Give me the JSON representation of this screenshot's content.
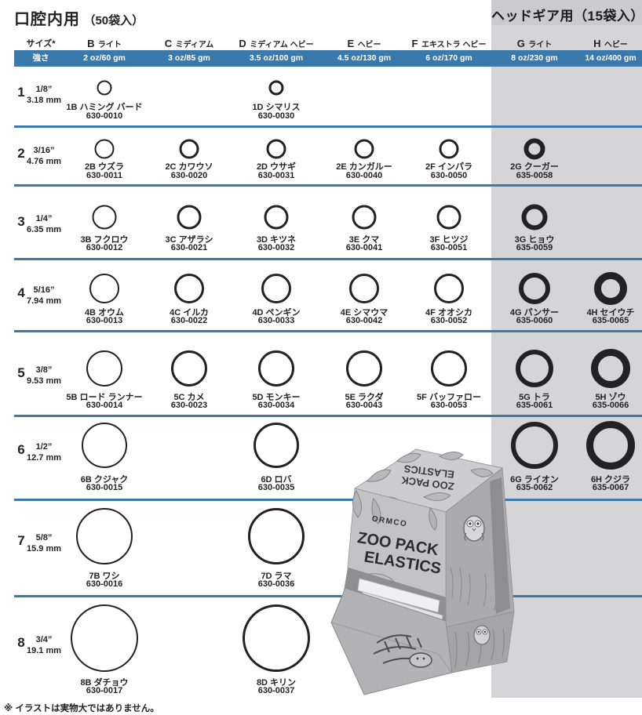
{
  "page": {
    "title_left": "口腔内用",
    "title_left_sub": "（50袋入）",
    "title_right": "ヘッドギア用（15袋入）",
    "size_header": "サイズ*",
    "strength_header": "強さ",
    "footnote": "※ イラストは実物大ではありません。"
  },
  "colors": {
    "accent_blue": "#3a79ac",
    "headgear_band_gray": "#d5d5d7",
    "ring_black": "#222224",
    "text_black": "#232325"
  },
  "columns": [
    {
      "id": "B",
      "letter": "B",
      "kana": "ライト",
      "strength": "2 oz/60 gm"
    },
    {
      "id": "C",
      "letter": "C",
      "kana": "ミディアム",
      "strength": "3 oz/85 gm"
    },
    {
      "id": "D",
      "letter": "D",
      "kana": "ミディアム ヘビー",
      "strength": "3.5 oz/100 gm"
    },
    {
      "id": "E",
      "letter": "E",
      "kana": "ヘビー",
      "strength": "4.5 oz/130 gm"
    },
    {
      "id": "F",
      "letter": "F",
      "kana": "エキストラ ヘビー",
      "strength": "6 oz/170 gm"
    },
    {
      "id": "G",
      "letter": "G",
      "kana": "ライト",
      "strength": "8 oz/230 gm"
    },
    {
      "id": "H",
      "letter": "H",
      "kana": "ヘビー",
      "strength": "14 oz/400 gm"
    }
  ],
  "rows": [
    {
      "num": "1",
      "inch": "1/8”",
      "mm": "3.18 mm",
      "products": [
        {
          "col": "B",
          "name": "1B ハミング バード",
          "code": "630-0010"
        },
        {
          "col": "D",
          "name": "1D シマリス",
          "code": "630-0030"
        }
      ]
    },
    {
      "num": "2",
      "inch": "3/16”",
      "mm": "4.76 mm",
      "products": [
        {
          "col": "B",
          "name": "2B ウズラ",
          "code": "630-0011"
        },
        {
          "col": "C",
          "name": "2C カワウソ",
          "code": "630-0020"
        },
        {
          "col": "D",
          "name": "2D ウサギ",
          "code": "630-0031"
        },
        {
          "col": "E",
          "name": "2E カンガルー",
          "code": "630-0040"
        },
        {
          "col": "F",
          "name": "2F インパラ",
          "code": "630-0050"
        },
        {
          "col": "G",
          "name": "2G クーガー",
          "code": "635-0058"
        }
      ]
    },
    {
      "num": "3",
      "inch": "1/4”",
      "mm": "6.35 mm",
      "products": [
        {
          "col": "B",
          "name": "3B フクロウ",
          "code": "630-0012"
        },
        {
          "col": "C",
          "name": "3C アザラシ",
          "code": "630-0021"
        },
        {
          "col": "D",
          "name": "3D キツネ",
          "code": "630-0032"
        },
        {
          "col": "E",
          "name": "3E クマ",
          "code": "630-0041"
        },
        {
          "col": "F",
          "name": "3F ヒツジ",
          "code": "630-0051"
        },
        {
          "col": "G",
          "name": "3G ヒョウ",
          "code": "635-0059"
        }
      ]
    },
    {
      "num": "4",
      "inch": "5/16”",
      "mm": "7.94 mm",
      "products": [
        {
          "col": "B",
          "name": "4B オウム",
          "code": "630-0013"
        },
        {
          "col": "C",
          "name": "4C イルカ",
          "code": "630-0022"
        },
        {
          "col": "D",
          "name": "4D ペンギン",
          "code": "630-0033"
        },
        {
          "col": "E",
          "name": "4E シマウマ",
          "code": "630-0042"
        },
        {
          "col": "F",
          "name": "4F オオシカ",
          "code": "630-0052"
        },
        {
          "col": "G",
          "name": "4G パンサー",
          "code": "635-0060"
        },
        {
          "col": "H",
          "name": "4H セイウチ",
          "code": "635-0065"
        }
      ]
    },
    {
      "num": "5",
      "inch": "3/8”",
      "mm": "9.53 mm",
      "products": [
        {
          "col": "B",
          "name": "5B ロード ランナー",
          "code": "630-0014"
        },
        {
          "col": "C",
          "name": "5C カメ",
          "code": "630-0023"
        },
        {
          "col": "D",
          "name": "5D モンキー",
          "code": "630-0034"
        },
        {
          "col": "E",
          "name": "5E ラクダ",
          "code": "630-0043"
        },
        {
          "col": "F",
          "name": "5F バッファロー",
          "code": "630-0053"
        },
        {
          "col": "G",
          "name": "5G トラ",
          "code": "635-0061"
        },
        {
          "col": "H",
          "name": "5H ゾウ",
          "code": "635-0066"
        }
      ]
    },
    {
      "num": "6",
      "inch": "1/2”",
      "mm": "12.7 mm",
      "products": [
        {
          "col": "B",
          "name": "6B クジャク",
          "code": "630-0015"
        },
        {
          "col": "D",
          "name": "6D ロバ",
          "code": "630-0035"
        },
        {
          "col": "G",
          "name": "6G ライオン",
          "code": "635-0062"
        },
        {
          "col": "H",
          "name": "6H クジラ",
          "code": "635-0067"
        }
      ]
    },
    {
      "num": "7",
      "inch": "5/8”",
      "mm": "15.9 mm",
      "products": [
        {
          "col": "B",
          "name": "7B ワシ",
          "code": "630-0016"
        },
        {
          "col": "D",
          "name": "7D ラマ",
          "code": "630-0036"
        }
      ]
    },
    {
      "num": "8",
      "inch": "3/4”",
      "mm": "19.1 mm",
      "products": [
        {
          "col": "B",
          "name": "8B ダチョウ",
          "code": "630-0017"
        },
        {
          "col": "D",
          "name": "8D キリン",
          "code": "630-0037"
        }
      ]
    }
  ],
  "box": {
    "brand": "ORMCO",
    "front_line1": "ZOO PACK",
    "front_line2": "ELASTICS",
    "top_line1": "ZOO PACK",
    "top_line2": "ELASTICS"
  }
}
